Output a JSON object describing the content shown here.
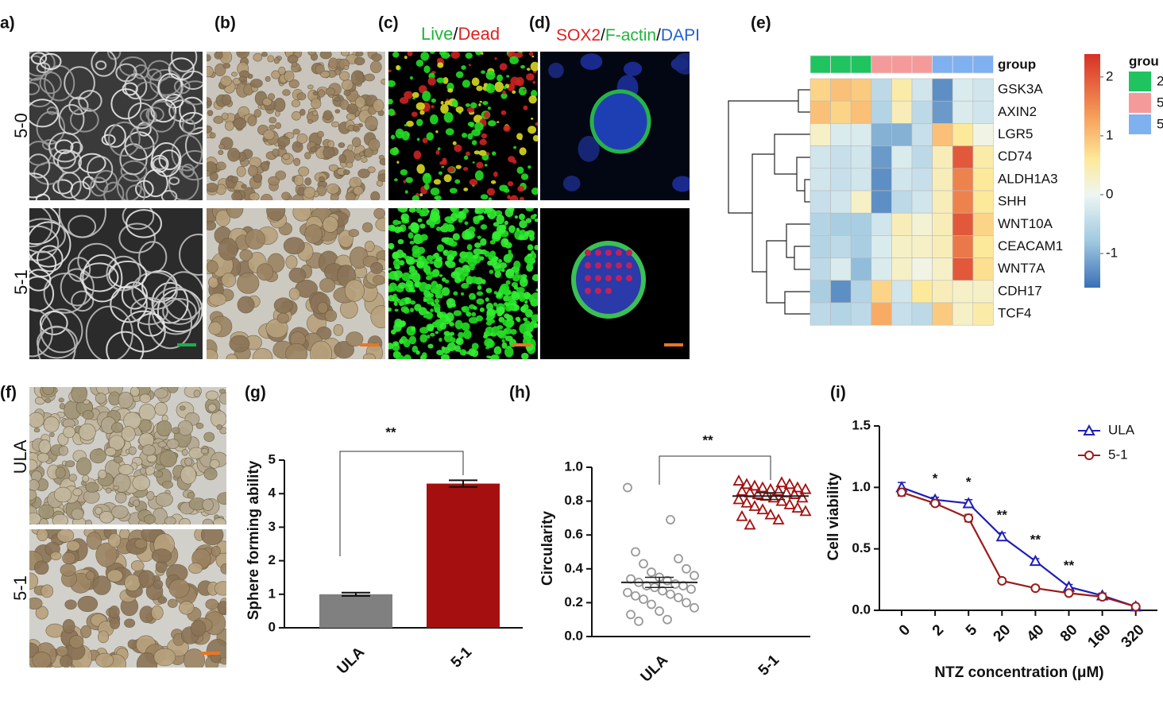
{
  "panels": {
    "a": "a)",
    "b": "(b)",
    "c": "(c)",
    "d": "(d)",
    "e": "(e)",
    "f": "(f)",
    "g": "(g)",
    "h": "(h)",
    "i": "(i)"
  },
  "micrographs": {
    "row_labels": [
      "5-0",
      "5-1"
    ],
    "stain_c": [
      "Live",
      "/",
      "Dead"
    ],
    "stain_c_colors": [
      "#1fb53a",
      "#111111",
      "#e02020"
    ],
    "stain_d": [
      "SOX2",
      "/",
      "F-actin",
      "/",
      "DAPI"
    ],
    "stain_d_colors": [
      "#e02020",
      "#111111",
      "#1fb53a",
      "#111111",
      "#2060d0"
    ],
    "row_labels_f": [
      "ULA",
      "5-1"
    ]
  },
  "heatmap": {
    "group_title": "group",
    "genes": [
      "GSK3A",
      "AXIN2",
      "LGR5",
      "CD74",
      "ALDH1A3",
      "SHH",
      "WNT10A",
      "CEACAM1",
      "WNT7A",
      "CDH17",
      "TCF4"
    ],
    "values": [
      [
        0.8,
        1.0,
        0.9,
        -0.5,
        0.5,
        -0.3,
        -1.3,
        -0.2,
        -0.3
      ],
      [
        1.0,
        0.8,
        1.0,
        -0.6,
        0.4,
        -0.5,
        -1.2,
        -0.2,
        -0.3
      ],
      [
        0.3,
        -0.2,
        -0.2,
        -1.0,
        -1.0,
        -0.4,
        1.0,
        0.6,
        0.1
      ],
      [
        -0.3,
        -0.4,
        -0.3,
        -1.2,
        -0.2,
        -0.5,
        0.4,
        2.0,
        0.5
      ],
      [
        -0.3,
        -0.4,
        -0.3,
        -1.3,
        -0.3,
        -0.4,
        0.4,
        1.6,
        0.6
      ],
      [
        -0.4,
        -0.3,
        0.3,
        -1.3,
        -0.5,
        -0.3,
        0.4,
        1.6,
        0.6
      ],
      [
        -0.6,
        -0.7,
        -0.7,
        -0.3,
        0.4,
        0.2,
        0.4,
        2.0,
        0.8
      ],
      [
        -0.6,
        -0.5,
        -0.7,
        -0.2,
        0.3,
        0.3,
        0.4,
        1.7,
        0.6
      ],
      [
        -0.5,
        -0.2,
        -0.9,
        -0.2,
        0.3,
        0.1,
        0.3,
        2.0,
        0.7
      ],
      [
        -0.7,
        -1.3,
        -0.6,
        0.8,
        -0.3,
        0.6,
        0.4,
        0.3,
        0.3
      ],
      [
        -0.5,
        -0.6,
        -0.5,
        1.2,
        -0.4,
        -0.5,
        0.9,
        0.3,
        0.5
      ]
    ],
    "clim": [
      -1.58,
      2.39
    ],
    "cticks": [
      2,
      1,
      0,
      -1
    ],
    "colorscale": {
      "values": [
        -1.58,
        -0.8,
        0,
        0.6,
        1.3,
        2.39
      ],
      "colors": [
        "#3a6fb5",
        "#9fc8e0",
        "#eef6f3",
        "#fde99a",
        "#f7a15c",
        "#d73027"
      ]
    },
    "column_groups": [
      0,
      0,
      0,
      1,
      1,
      1,
      2,
      2,
      2
    ],
    "group_colors": [
      "#1fc360",
      "#f59a9a",
      "#7fb0f0"
    ],
    "legend_title": "grou",
    "legend_labels": [
      "2",
      "5",
      "5"
    ]
  },
  "chart_data": [
    {
      "type": "bar",
      "ylabel": "Sphere forming ability",
      "categories": [
        "ULA",
        "5-1"
      ],
      "values": [
        1.0,
        4.3
      ],
      "errors": [
        0.05,
        0.1
      ],
      "colors": [
        "#808080",
        "#a50f0f"
      ],
      "ylim": [
        0,
        5
      ],
      "yticks": [
        0,
        1,
        2,
        3,
        4,
        5
      ],
      "significance": "**"
    },
    {
      "type": "strip",
      "ylabel": "Circularity",
      "categories": [
        "ULA",
        "5-1"
      ],
      "series": [
        {
          "color": "#999999",
          "marker": "circle",
          "values": [
            0.88,
            0.69,
            0.5,
            0.46,
            0.43,
            0.4,
            0.38,
            0.36,
            0.35,
            0.34,
            0.33,
            0.32,
            0.31,
            0.3,
            0.3,
            0.29,
            0.28,
            0.27,
            0.26,
            0.25,
            0.24,
            0.23,
            0.22,
            0.2,
            0.19,
            0.17,
            0.15,
            0.13,
            0.1,
            0.09
          ]
        },
        {
          "color": "#a50f0f",
          "marker": "triangle",
          "values": [
            0.92,
            0.91,
            0.9,
            0.9,
            0.89,
            0.88,
            0.88,
            0.87,
            0.87,
            0.86,
            0.86,
            0.85,
            0.85,
            0.84,
            0.84,
            0.83,
            0.82,
            0.82,
            0.81,
            0.8,
            0.79,
            0.78,
            0.77,
            0.76,
            0.75,
            0.74,
            0.72,
            0.71,
            0.69,
            0.66
          ]
        }
      ],
      "mean": [
        0.32,
        0.83
      ],
      "sem": [
        0.03,
        0.02
      ],
      "ylim": [
        0,
        1
      ],
      "yticks": [
        {
          "value": 0,
          "label": "0.0"
        },
        0.2,
        0.4,
        0.6,
        0.8,
        {
          "value": 1,
          "label": "1.0"
        }
      ],
      "significance": "**"
    },
    {
      "type": "line",
      "xlabel": "NTZ concentration (μM)",
      "ylabel": "Cell viability",
      "categories": [
        "0",
        "2",
        "5",
        "20",
        "40",
        "80",
        "160",
        "320"
      ],
      "series": [
        {
          "name": "ULA",
          "color": "#1f1fb4",
          "marker": "triangle",
          "values": [
            1.0,
            0.9,
            0.87,
            0.6,
            0.4,
            0.19,
            0.12,
            0.03
          ],
          "errors": [
            0.04,
            0.02,
            0.03,
            0.03,
            0.02,
            0.02,
            0.02,
            0.01
          ]
        },
        {
          "name": "5-1",
          "color": "#9b1b1b",
          "marker": "circle",
          "values": [
            0.96,
            0.87,
            0.75,
            0.24,
            0.18,
            0.14,
            0.11,
            0.03
          ],
          "errors": [
            0.03,
            0.02,
            0.03,
            0.02,
            0.01,
            0.01,
            0.01,
            0.01
          ]
        }
      ],
      "significance": [
        null,
        "*",
        "*",
        "**",
        "**",
        "**",
        null,
        null
      ],
      "ylim": [
        0,
        1.5
      ],
      "yticks": [
        {
          "value": 0,
          "label": "0.0"
        },
        0.5,
        {
          "value": 1,
          "label": "1.0"
        },
        1.5
      ]
    }
  ]
}
